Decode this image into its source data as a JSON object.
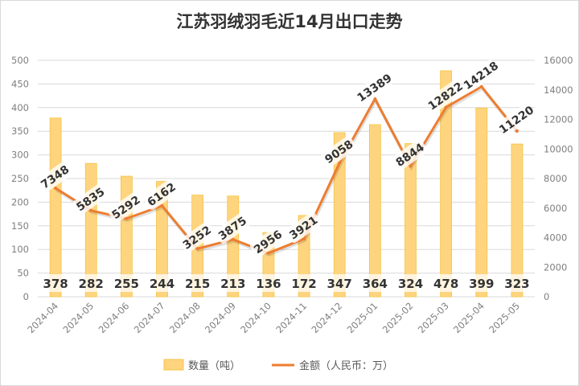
{
  "chart_data": {
    "type": "bar+line",
    "title": "江苏羽绒羽毛近14月出口走势",
    "categories": [
      "2024-04",
      "2024-05",
      "2024-06",
      "2024-07",
      "2024-08",
      "2024-09",
      "2024-10",
      "2024-11",
      "2024-12",
      "2025-01",
      "2025-02",
      "2025-03",
      "2025-04",
      "2025-05"
    ],
    "series": [
      {
        "name": "数量（吨）",
        "type": "bar",
        "axis": "left",
        "color": "#FFD47F",
        "values": [
          378,
          282,
          255,
          244,
          215,
          213,
          136,
          172,
          347,
          364,
          324,
          478,
          399,
          323
        ]
      },
      {
        "name": "金额（人民币：万）",
        "type": "line",
        "axis": "right",
        "color": "#ED7D31",
        "values": [
          7348,
          5835,
          5292,
          6162,
          3252,
          3875,
          2956,
          3921,
          9058,
          13389,
          8844,
          12822,
          14218,
          11220
        ]
      }
    ],
    "left_axis": {
      "min": 0,
      "max": 500,
      "step": 50,
      "ticks": [
        "0",
        "50",
        "100",
        "150",
        "200",
        "250",
        "300",
        "350",
        "400",
        "450",
        "500"
      ]
    },
    "right_axis": {
      "min": 0,
      "max": 16000,
      "step": 2000,
      "ticks": [
        "0",
        "2000",
        "4000",
        "6000",
        "8000",
        "10000",
        "12000",
        "14000",
        "16000"
      ]
    },
    "grid": true,
    "legend_position": "bottom"
  }
}
